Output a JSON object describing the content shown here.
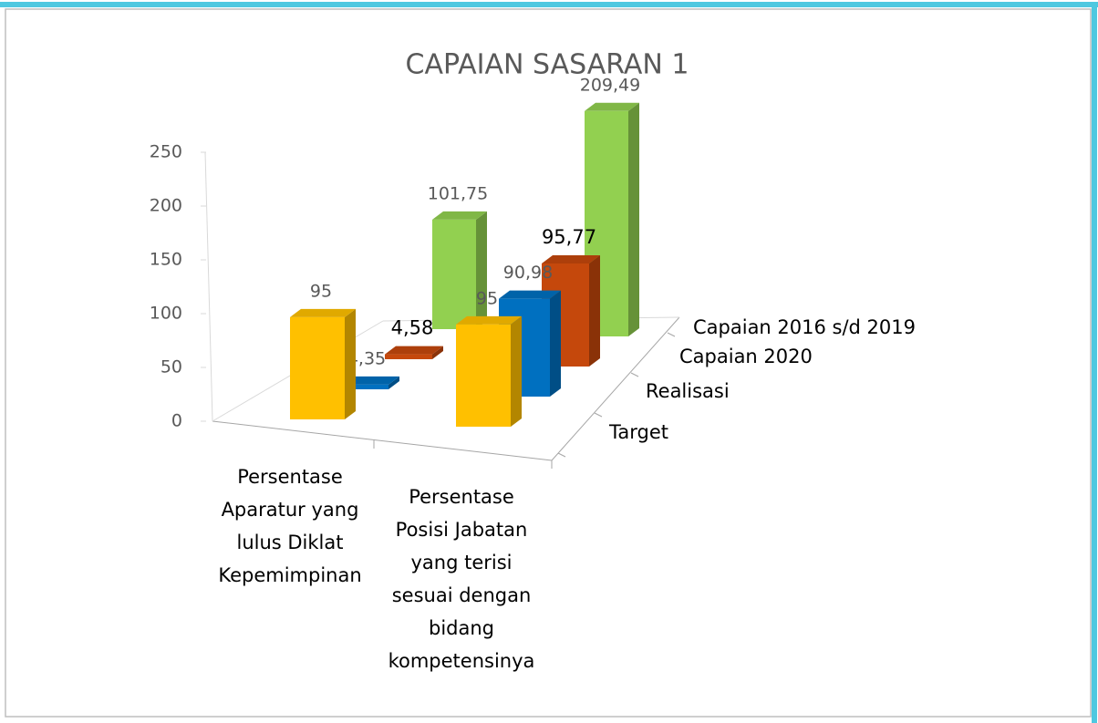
{
  "chart_data": {
    "type": "bar3d",
    "title": "CAPAIAN SASARAN 1",
    "categories": [
      "Persentase Aparatur yang lulus Diklat Kepemimpinan",
      "Persentase Posisi Jabatan yang terisi sesuai dengan bidang kompetensinya"
    ],
    "series": [
      {
        "name": "Target",
        "color": "#ffc000",
        "values": [
          95,
          95
        ],
        "value_labels": [
          "95",
          "95"
        ]
      },
      {
        "name": "Realisasi",
        "color": "#0070c0",
        "values": [
          4.35,
          90.98
        ],
        "value_labels": [
          "4,35",
          "90,98"
        ]
      },
      {
        "name": "Capaian 2020",
        "color": "#c5480c",
        "values": [
          4.58,
          95.77
        ],
        "value_labels": [
          "4,58",
          "95,77"
        ]
      },
      {
        "name": "Capaian 2016 s/d 2019",
        "color": "#92d050",
        "values": [
          101.75,
          209.49
        ],
        "value_labels": [
          "101,75",
          "209,49"
        ]
      }
    ],
    "ylim": [
      0,
      250
    ],
    "yticks": [
      0,
      50,
      100,
      150,
      200,
      250
    ]
  }
}
